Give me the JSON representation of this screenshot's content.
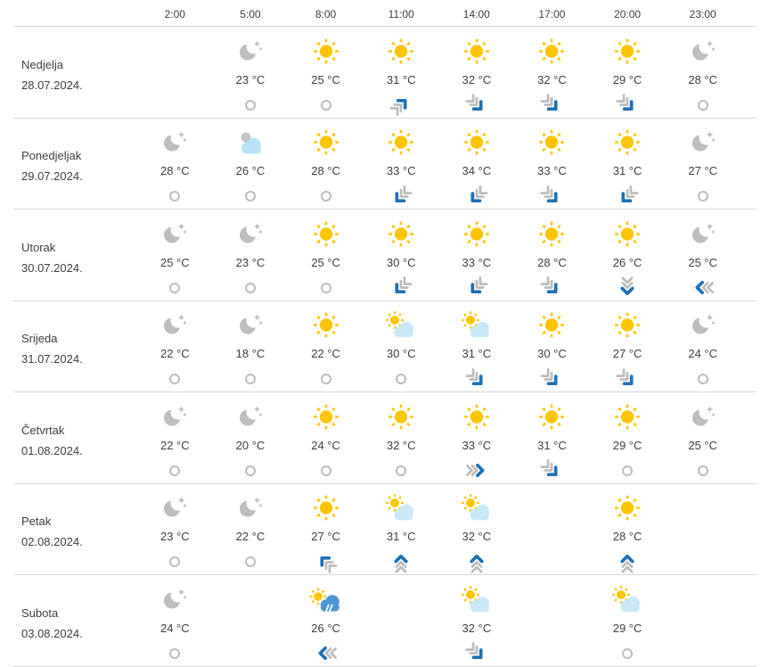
{
  "header": {
    "times": [
      "2:00",
      "5:00",
      "8:00",
      "11:00",
      "14:00",
      "17:00",
      "20:00",
      "23:00"
    ]
  },
  "colors": {
    "sun_yellow": "#FFC400",
    "moon_gray": "#BDBDBD",
    "cloud_light_blue": "#B9E2F6",
    "rain_cloud_blue": "#4E96D3",
    "wind_arrow_blue": "#1D71B5",
    "wind_arrow_gray": "#BCBCBC",
    "text": "#3E3E3E",
    "row_separator": "#D9D9D9"
  },
  "days": [
    {
      "name": "Nedjelja",
      "date": "28.07.2024.",
      "cells": [
        {
          "icon": "",
          "temp": "",
          "wind": ""
        },
        {
          "icon": "moon",
          "temp": "23 °C",
          "wind": "calm"
        },
        {
          "icon": "sun",
          "temp": "25 °C",
          "wind": "calm"
        },
        {
          "icon": "sun",
          "temp": "31 °C",
          "wind": "NE"
        },
        {
          "icon": "sun",
          "temp": "32 °C",
          "wind": "SE"
        },
        {
          "icon": "sun",
          "temp": "32 °C",
          "wind": "SE"
        },
        {
          "icon": "sun",
          "temp": "29 °C",
          "wind": "SE"
        },
        {
          "icon": "moon",
          "temp": "28 °C",
          "wind": "calm"
        }
      ]
    },
    {
      "name": "Ponedjeljak",
      "date": "29.07.2024.",
      "cells": [
        {
          "icon": "moon",
          "temp": "28 °C",
          "wind": "calm"
        },
        {
          "icon": "cloud-moon",
          "temp": "26 °C",
          "wind": "calm"
        },
        {
          "icon": "sun",
          "temp": "28 °C",
          "wind": "calm"
        },
        {
          "icon": "sun",
          "temp": "33 °C",
          "wind": "SW"
        },
        {
          "icon": "sun",
          "temp": "34 °C",
          "wind": "SW"
        },
        {
          "icon": "sun",
          "temp": "33 °C",
          "wind": "SE"
        },
        {
          "icon": "sun",
          "temp": "31 °C",
          "wind": "SW"
        },
        {
          "icon": "moon",
          "temp": "27 °C",
          "wind": "calm"
        }
      ]
    },
    {
      "name": "Utorak",
      "date": "30.07.2024.",
      "cells": [
        {
          "icon": "moon",
          "temp": "25 °C",
          "wind": "calm"
        },
        {
          "icon": "moon",
          "temp": "23 °C",
          "wind": "calm"
        },
        {
          "icon": "sun",
          "temp": "25 °C",
          "wind": "calm"
        },
        {
          "icon": "sun",
          "temp": "30 °C",
          "wind": "SW"
        },
        {
          "icon": "sun",
          "temp": "33 °C",
          "wind": "SW"
        },
        {
          "icon": "sun",
          "temp": "28 °C",
          "wind": "SE"
        },
        {
          "icon": "sun",
          "temp": "26 °C",
          "wind": "S"
        },
        {
          "icon": "moon",
          "temp": "25 °C",
          "wind": "W"
        }
      ]
    },
    {
      "name": "Srijeda",
      "date": "31.07.2024.",
      "cells": [
        {
          "icon": "moon",
          "temp": "22 °C",
          "wind": "calm"
        },
        {
          "icon": "moon",
          "temp": "18 °C",
          "wind": "calm"
        },
        {
          "icon": "sun",
          "temp": "22 °C",
          "wind": "calm"
        },
        {
          "icon": "sun-cloud",
          "temp": "30 °C",
          "wind": "calm"
        },
        {
          "icon": "sun-cloud",
          "temp": "31 °C",
          "wind": "SE"
        },
        {
          "icon": "sun",
          "temp": "30 °C",
          "wind": "SE"
        },
        {
          "icon": "sun",
          "temp": "27 °C",
          "wind": "SE"
        },
        {
          "icon": "moon",
          "temp": "24 °C",
          "wind": "calm"
        }
      ]
    },
    {
      "name": "Četvrtak",
      "date": "01.08.2024.",
      "cells": [
        {
          "icon": "moon",
          "temp": "22 °C",
          "wind": "calm"
        },
        {
          "icon": "moon",
          "temp": "20 °C",
          "wind": "calm"
        },
        {
          "icon": "sun",
          "temp": "24 °C",
          "wind": "calm"
        },
        {
          "icon": "sun",
          "temp": "32 °C",
          "wind": "calm"
        },
        {
          "icon": "sun",
          "temp": "33 °C",
          "wind": "E"
        },
        {
          "icon": "sun",
          "temp": "31 °C",
          "wind": "SE"
        },
        {
          "icon": "sun",
          "temp": "29 °C",
          "wind": "calm"
        },
        {
          "icon": "moon",
          "temp": "25 °C",
          "wind": "calm"
        }
      ]
    },
    {
      "name": "Petak",
      "date": "02.08.2024.",
      "cells": [
        {
          "icon": "moon",
          "temp": "23 °C",
          "wind": "calm"
        },
        {
          "icon": "moon",
          "temp": "22 °C",
          "wind": "calm"
        },
        {
          "icon": "sun",
          "temp": "27 °C",
          "wind": "NW"
        },
        {
          "icon": "sun-cloud",
          "temp": "31 °C",
          "wind": "N"
        },
        {
          "icon": "sun-cloud",
          "temp": "32 °C",
          "wind": "N"
        },
        {
          "icon": "",
          "temp": "",
          "wind": ""
        },
        {
          "icon": "sun",
          "temp": "28 °C",
          "wind": "N"
        },
        {
          "icon": "",
          "temp": "",
          "wind": ""
        }
      ]
    },
    {
      "name": "Subota",
      "date": "03.08.2024.",
      "cells": [
        {
          "icon": "moon",
          "temp": "24 °C",
          "wind": "calm"
        },
        {
          "icon": "",
          "temp": "",
          "wind": ""
        },
        {
          "icon": "sun-rain",
          "temp": "26 °C",
          "wind": "W"
        },
        {
          "icon": "",
          "temp": "",
          "wind": ""
        },
        {
          "icon": "sun-cloud",
          "temp": "32 °C",
          "wind": "SE"
        },
        {
          "icon": "",
          "temp": "",
          "wind": ""
        },
        {
          "icon": "sun-cloud",
          "temp": "29 °C",
          "wind": "calm"
        },
        {
          "icon": "",
          "temp": "",
          "wind": ""
        }
      ]
    }
  ]
}
